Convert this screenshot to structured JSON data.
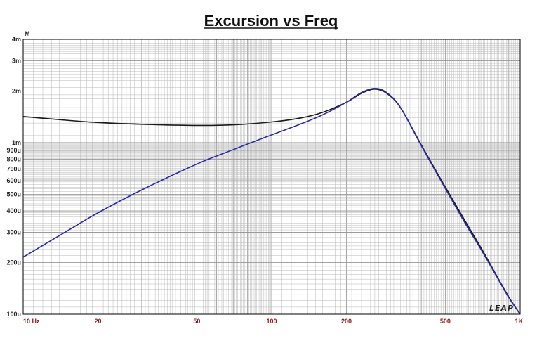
{
  "chart_data": {
    "type": "line",
    "title": "Excursion vs Freq",
    "y_unit_label": "M",
    "x_scale": "log",
    "y_scale": "log",
    "xlim": [
      10,
      1000
    ],
    "ylim": [
      0.0001,
      0.004
    ],
    "grid": true,
    "x_tick_labels": [
      {
        "value": 10,
        "label": "10  Hz"
      },
      {
        "value": 20,
        "label": "20"
      },
      {
        "value": 50,
        "label": "50"
      },
      {
        "value": 100,
        "label": "100"
      },
      {
        "value": 200,
        "label": "200"
      },
      {
        "value": 500,
        "label": "500"
      },
      {
        "value": 1000,
        "label": "1K"
      }
    ],
    "y_tick_labels": [
      {
        "value": 0.004,
        "label": "4m"
      },
      {
        "value": 0.003,
        "label": "3m"
      },
      {
        "value": 0.002,
        "label": "2m"
      },
      {
        "value": 0.001,
        "label": "1m"
      },
      {
        "value": 0.0009,
        "label": "900u"
      },
      {
        "value": 0.0008,
        "label": "800u"
      },
      {
        "value": 0.0007,
        "label": "700u"
      },
      {
        "value": 0.0006,
        "label": "600u"
      },
      {
        "value": 0.0005,
        "label": "500u"
      },
      {
        "value": 0.0004,
        "label": "400u"
      },
      {
        "value": 0.0003,
        "label": "300u"
      },
      {
        "value": 0.0002,
        "label": "200u"
      },
      {
        "value": 0.0001,
        "label": "100u"
      }
    ],
    "series": [
      {
        "color": "#1a1a1a",
        "x": [
          10,
          15,
          20,
          30,
          50,
          70,
          100,
          130,
          160,
          200,
          230,
          260,
          290,
          330,
          400,
          500,
          600,
          700,
          800,
          900,
          1000
        ],
        "y": [
          0.00142,
          0.00135,
          0.00131,
          0.00128,
          0.00126,
          0.00127,
          0.00132,
          0.00139,
          0.0015,
          0.00172,
          0.00194,
          0.00205,
          0.00194,
          0.0016,
          0.00097,
          0.00055,
          0.00035,
          0.00024,
          0.00017,
          0.000126,
          0.0001
        ]
      },
      {
        "color": "#2828a8",
        "x": [
          10,
          15,
          20,
          30,
          50,
          70,
          100,
          130,
          160,
          200,
          230,
          260,
          290,
          330,
          400,
          500,
          600,
          700,
          800,
          900,
          1000
        ],
        "y": [
          0.000215,
          0.000305,
          0.00039,
          0.00053,
          0.00075,
          0.00091,
          0.00111,
          0.00128,
          0.00145,
          0.00172,
          0.00196,
          0.00207,
          0.00196,
          0.0016,
          0.00096,
          0.00054,
          0.00034,
          0.000235,
          0.000168,
          0.000125,
          0.0001
        ]
      }
    ]
  },
  "logo": {
    "text": "LEAP"
  },
  "colors": {
    "grid": "#b8b8b8",
    "frame": "#000000",
    "background": "#ffffff"
  }
}
